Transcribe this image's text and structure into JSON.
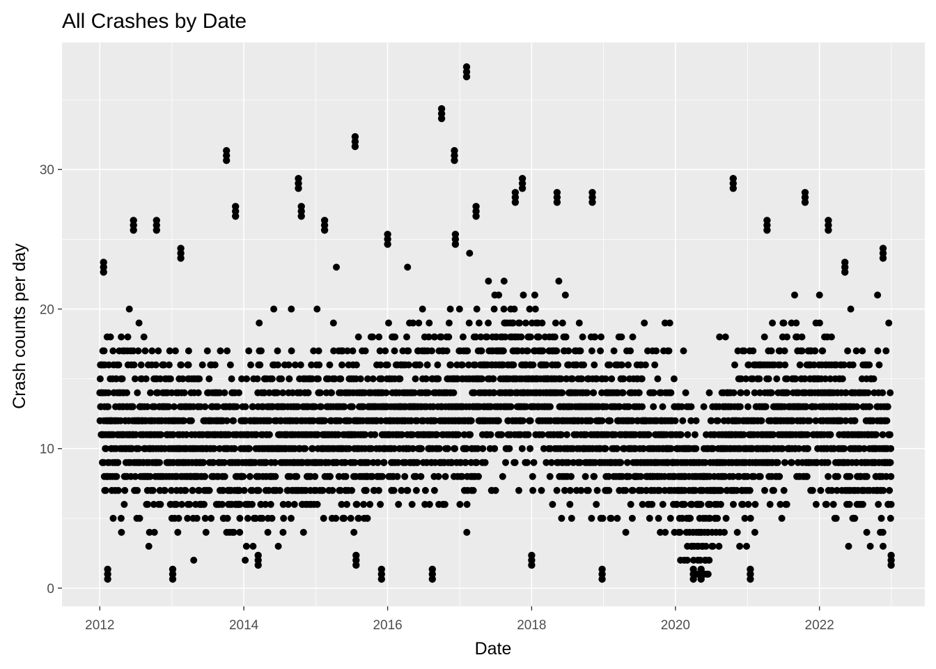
{
  "chart_data": {
    "type": "scatter",
    "title": "All Crashes by Date",
    "xlabel": "Date",
    "ylabel": "Crash counts per day",
    "x_ticks": [
      "2012",
      "2014",
      "2016",
      "2018",
      "2020",
      "2022"
    ],
    "y_ticks": [
      "0",
      "10",
      "20",
      "30"
    ],
    "xlim": [
      "2011-06-23",
      "2023-06-20"
    ],
    "ylim": [
      -1.3,
      39.1
    ],
    "grid": true,
    "legend": "none",
    "point_color": "#000000",
    "panel_background": "#ebebeb",
    "notes": "Dense daily series: one point per day from 2012-01-01 to 2022-12-31, values mostly 5-17 with outliers; extreme points listed in highlights.",
    "date_range": [
      "2012-01-01",
      "2022-12-31"
    ],
    "highlights": [
      {
        "x": "2012-01-20",
        "y": 23
      },
      {
        "x": "2012-02-10",
        "y": 1
      },
      {
        "x": "2012-06-20",
        "y": 26
      },
      {
        "x": "2012-10-15",
        "y": 26
      },
      {
        "x": "2013-01-05",
        "y": 1
      },
      {
        "x": "2013-02-15",
        "y": 24
      },
      {
        "x": "2013-10-05",
        "y": 31
      },
      {
        "x": "2013-11-20",
        "y": 27
      },
      {
        "x": "2014-03-15",
        "y": 2
      },
      {
        "x": "2014-10-05",
        "y": 29
      },
      {
        "x": "2014-10-20",
        "y": 27
      },
      {
        "x": "2015-02-15",
        "y": 26
      },
      {
        "x": "2015-07-20",
        "y": 32
      },
      {
        "x": "2015-07-25",
        "y": 2
      },
      {
        "x": "2015-12-01",
        "y": 1
      },
      {
        "x": "2016-01-01",
        "y": 25
      },
      {
        "x": "2016-08-15",
        "y": 1
      },
      {
        "x": "2016-10-01",
        "y": 34
      },
      {
        "x": "2016-12-05",
        "y": 31
      },
      {
        "x": "2016-12-10",
        "y": 25
      },
      {
        "x": "2017-02-05",
        "y": 37
      },
      {
        "x": "2017-03-25",
        "y": 27
      },
      {
        "x": "2017-10-10",
        "y": 28
      },
      {
        "x": "2017-11-15",
        "y": 29
      },
      {
        "x": "2018-01-01",
        "y": 2
      },
      {
        "x": "2018-05-10",
        "y": 28
      },
      {
        "x": "2018-11-05",
        "y": 28
      },
      {
        "x": "2018-12-25",
        "y": 1
      },
      {
        "x": "2020-04-01",
        "y": 1
      },
      {
        "x": "2020-05-10",
        "y": 1
      },
      {
        "x": "2020-10-20",
        "y": 29
      },
      {
        "x": "2021-01-15",
        "y": 1
      },
      {
        "x": "2021-04-10",
        "y": 26
      },
      {
        "x": "2021-10-20",
        "y": 28
      },
      {
        "x": "2022-02-15",
        "y": 26
      },
      {
        "x": "2022-05-10",
        "y": 23
      },
      {
        "x": "2022-11-20",
        "y": 24
      },
      {
        "x": "2022-12-31",
        "y": 2
      }
    ]
  }
}
